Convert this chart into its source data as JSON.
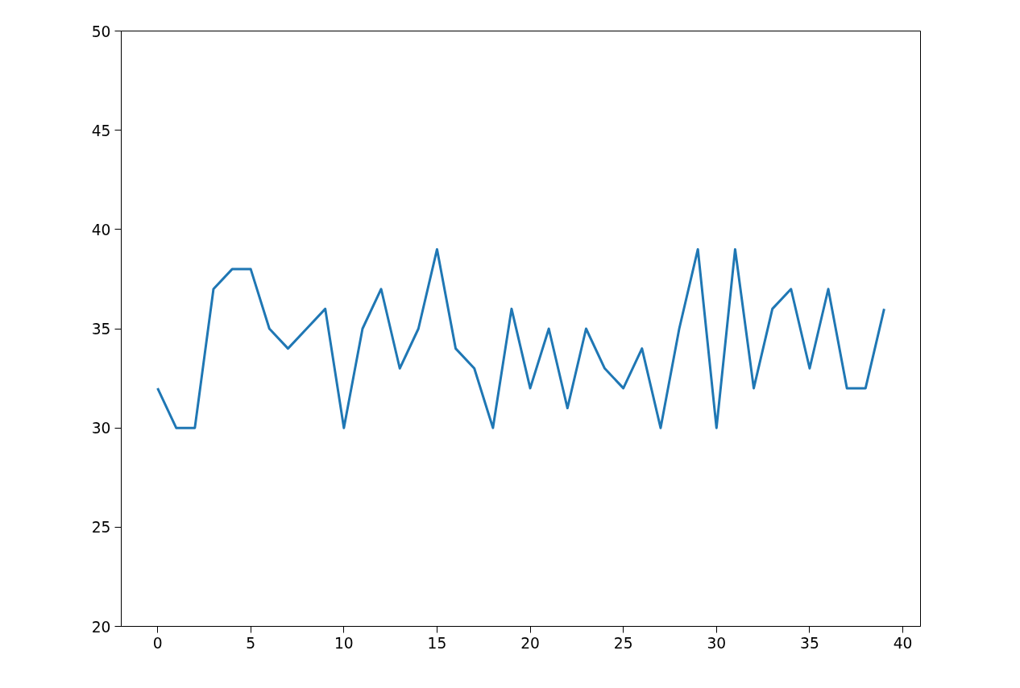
{
  "chart_data": {
    "type": "line",
    "x": [
      0,
      1,
      2,
      3,
      4,
      5,
      6,
      7,
      8,
      9,
      10,
      11,
      12,
      13,
      14,
      15,
      16,
      17,
      18,
      19,
      20,
      21,
      22,
      23,
      24,
      25,
      26,
      27,
      28,
      29,
      30,
      31,
      32,
      33,
      34,
      35,
      36,
      37,
      38,
      39
    ],
    "series": [
      {
        "color": "#1f77b4",
        "values": [
          32,
          30,
          30,
          37,
          38,
          38,
          35,
          34,
          35,
          36,
          30,
          35,
          37,
          33,
          35,
          39,
          34,
          33,
          30,
          36,
          32,
          35,
          31,
          35,
          33,
          32,
          34,
          30,
          35,
          39,
          30,
          39,
          32,
          36,
          37,
          33,
          37,
          32,
          32,
          36
        ]
      }
    ],
    "xlim": [
      -1.95,
      40.95
    ],
    "xticks": [
      0,
      5,
      10,
      15,
      20,
      25,
      30,
      35,
      40
    ],
    "ylim": [
      20,
      50
    ],
    "yticks": [
      20,
      25,
      30,
      35,
      40,
      45,
      50
    ],
    "grid": false
  }
}
